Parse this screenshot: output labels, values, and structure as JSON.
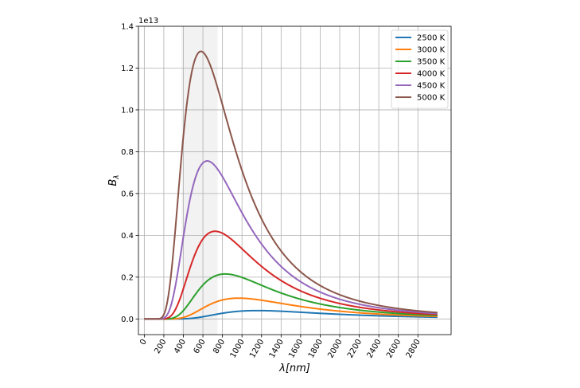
{
  "chart_data": {
    "type": "line",
    "xlabel": "λ[nm]",
    "ylabel": "B_λ",
    "y_offset_text": "1e13",
    "xlim": [
      -60,
      3140
    ],
    "ylim": [
      -0.075,
      1.4
    ],
    "x_ticks": [
      0,
      200,
      400,
      600,
      800,
      1000,
      1200,
      1400,
      1600,
      1800,
      2000,
      2200,
      2400,
      2600,
      2800
    ],
    "x_tick_labels": [
      "0",
      "200",
      "400",
      "600",
      "800",
      "1000",
      "1200",
      "1400",
      "1600",
      "1800",
      "2000",
      "2200",
      "2400",
      "2600",
      "2800"
    ],
    "y_ticks": [
      0.0,
      0.2,
      0.4,
      0.6,
      0.8,
      1.0,
      1.2,
      1.4
    ],
    "y_tick_labels": [
      "0.0",
      "0.2",
      "0.4",
      "0.6",
      "0.8",
      "1.0",
      "1.2",
      "1.4"
    ],
    "grid": true,
    "legend_position": "top-right",
    "shaded_band": {
      "x_start": 380,
      "x_end": 750,
      "color": "#e6e6e6"
    },
    "x_range": [
      0,
      3000
    ],
    "series": [
      {
        "name": "2500 K",
        "temperature": 2500,
        "color": "#1f77b4",
        "peak_x": 1159,
        "peak_value": 0.0395
      },
      {
        "name": "3000 K",
        "temperature": 3000,
        "color": "#ff7f0e",
        "peak_x": 966,
        "peak_value": 0.0983
      },
      {
        "name": "3500 K",
        "temperature": 3500,
        "color": "#2ca02c",
        "peak_x": 828,
        "peak_value": 0.2126
      },
      {
        "name": "4000 K",
        "temperature": 4000,
        "color": "#d62728",
        "peak_x": 724,
        "peak_value": 0.4144
      },
      {
        "name": "4500 K",
        "temperature": 4500,
        "color": "#9467bd",
        "peak_x": 644,
        "peak_value": 0.7469
      },
      {
        "name": "5000 K",
        "temperature": 5000,
        "color": "#8c564b",
        "peak_x": 580,
        "peak_value": 1.2651
      }
    ]
  }
}
